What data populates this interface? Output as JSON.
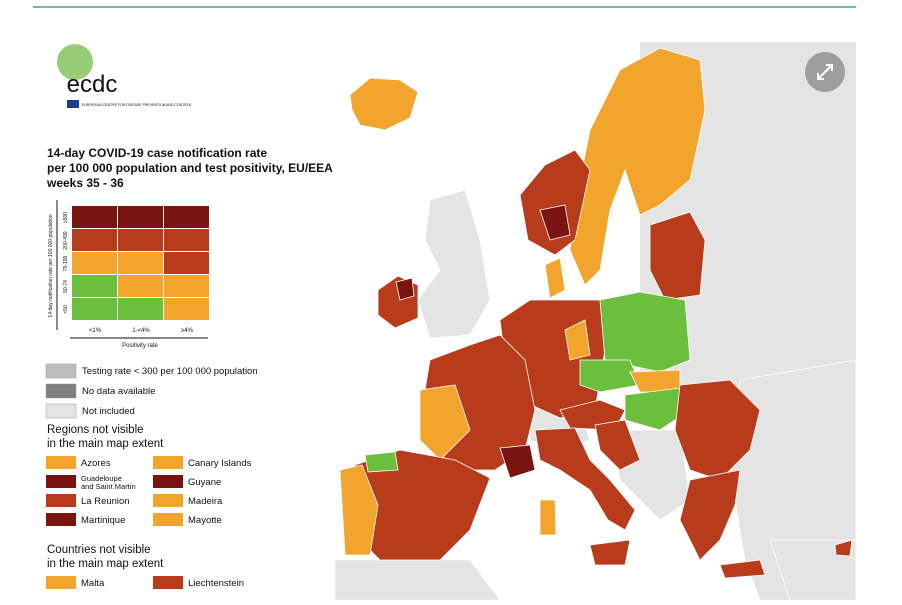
{
  "logo": {
    "text": "ecdc",
    "subtext": "EUROPEAN CENTRE FOR DISEASE PREVENTION AND CONTROL"
  },
  "legend": {
    "title_lines": [
      "14-day COVID-19 case notification rate",
      "per 100 000 population and test positivity, EU/EEA",
      "weeks 35 - 36"
    ],
    "matrix": {
      "y_label": "14-day notification rate per 100 000 population",
      "row_labels": [
        "≥500",
        "200-499",
        "75-199",
        "50-74",
        "<50"
      ],
      "column_labels": [
        "<1%",
        "1-<4%",
        "≥4%"
      ],
      "x_label": "Positivity rate",
      "colors": [
        [
          "#7a1410",
          "#7a1410",
          "#7a1410"
        ],
        [
          "#b83c1c",
          "#b83c1c",
          "#b83c1c"
        ],
        [
          "#f2a42c",
          "#f2a42c",
          "#b83c1c"
        ],
        [
          "#6cbf3c",
          "#f2a42c",
          "#f2a42c"
        ],
        [
          "#6cbf3c",
          "#6cbf3c",
          "#f2a42c"
        ]
      ]
    },
    "status_items": [
      {
        "label": "Testing rate < 300 per 100 000 population",
        "color": "#bdbdbd"
      },
      {
        "label": "No data available",
        "color": "#7f7f7f"
      },
      {
        "label": "Not included",
        "color": "#e4e4e4"
      }
    ],
    "regions_title_lines": [
      "Regions not visible",
      "in the main map extent"
    ],
    "regions": [
      {
        "label_lines": [
          "Azores"
        ],
        "color": "#f2a42c"
      },
      {
        "label_lines": [
          "Guadeloupe",
          "and Saint Martin"
        ],
        "color": "#7a1410"
      },
      {
        "label_lines": [
          "La Reunion"
        ],
        "color": "#b83c1c"
      },
      {
        "label_lines": [
          "Martinique"
        ],
        "color": "#7a1410"
      },
      {
        "label_lines": [
          "Canary Islands"
        ],
        "color": "#f2a42c"
      },
      {
        "label_lines": [
          "Guyane"
        ],
        "color": "#7a1410"
      },
      {
        "label_lines": [
          "Madeira"
        ],
        "color": "#f2a42c"
      },
      {
        "label_lines": [
          "Mayotte"
        ],
        "color": "#f2a42c"
      }
    ],
    "countries_title_lines": [
      "Countries not visible",
      "in the main map extent"
    ],
    "countries": [
      {
        "label_lines": [
          "Malta"
        ],
        "color": "#f2a42c"
      },
      {
        "label_lines": [
          "Liechtenstein"
        ],
        "color": "#b83c1c"
      }
    ]
  }
}
